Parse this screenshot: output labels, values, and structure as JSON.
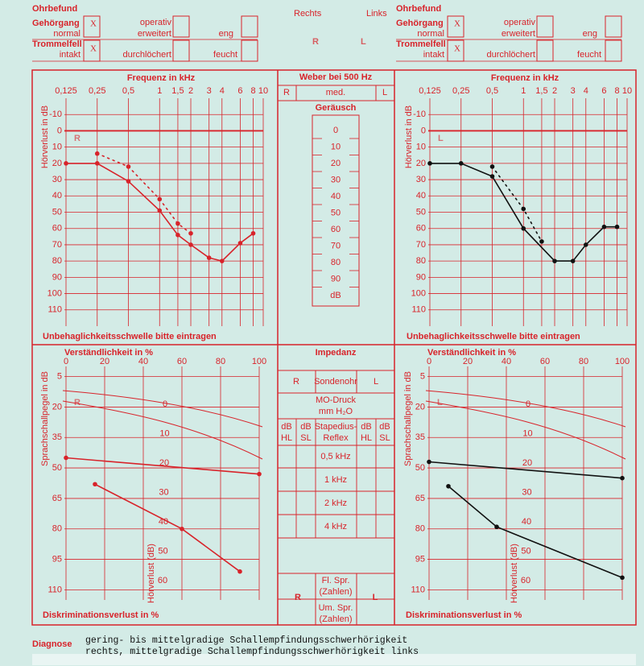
{
  "header": {
    "right": {
      "title": "Ohrbefund",
      "gehoergang": "Gehörgang",
      "normal": "normal",
      "operativ": "operativ",
      "erweitert": "erweitert",
      "eng": "eng",
      "trommelfell": "Trommelfell",
      "intakt": "intakt",
      "durchloechert": "durchlöchert",
      "feucht": "feucht",
      "checks": [
        "X",
        "X"
      ]
    },
    "left": {
      "title": "Ohrbefund",
      "gehoergang": "Gehörgang",
      "normal": "normal",
      "operativ": "operativ",
      "erweitert": "erweitert",
      "eng": "eng",
      "trommelfell": "Trommelfell",
      "intakt": "intakt",
      "durchloechert": "durchlöchert",
      "feucht": "feucht",
      "checks": [
        "X",
        "X"
      ]
    },
    "rechts": "Rechts",
    "links": "Links",
    "big_r": "R",
    "big_l": "L"
  },
  "audiograms": [
    {
      "x_label": "Frequenz in kHz",
      "y_label": "Hörverlust in dB",
      "footer": "Unbehaglichkeitsschwelle bitte eintragen",
      "watermark": "R",
      "log_x": true,
      "xlim": [
        0.125,
        10
      ],
      "xticks": [
        {
          "value": 0.125,
          "label": "0,125"
        },
        {
          "value": 0.25,
          "label": "0,25"
        },
        {
          "value": 0.5,
          "label": "0,5"
        },
        1,
        {
          "value": 1.5,
          "label": "1,5"
        },
        2,
        3,
        4,
        6,
        8,
        10
      ],
      "ylim": [
        -20,
        120
      ],
      "yticks": [
        -10,
        0,
        10,
        20,
        30,
        40,
        50,
        60,
        70,
        80,
        90,
        100,
        110
      ],
      "grid": true,
      "color": "#d8232a",
      "series": [
        {
          "x": [
            0.125,
            0.25,
            0.5,
            1,
            1.5,
            2,
            3,
            4,
            6,
            8
          ],
          "values": [
            20,
            20,
            31,
            49,
            64,
            70,
            78,
            80,
            69,
            63
          ],
          "dashed": false
        },
        {
          "x": [
            0.25,
            0.5,
            1,
            1.5,
            2
          ],
          "values": [
            14,
            22,
            42,
            57,
            63
          ],
          "dashed": true
        }
      ]
    },
    {
      "x_label": "Frequenz in kHz",
      "y_label": "Hörverlust in dB",
      "footer": "Unbehaglichkeitsschwelle bitte eintragen",
      "watermark": "L",
      "log_x": true,
      "xlim": [
        0.125,
        10
      ],
      "xticks": [
        {
          "value": 0.125,
          "label": "0,125"
        },
        {
          "value": 0.25,
          "label": "0,25"
        },
        {
          "value": 0.5,
          "label": "0,5"
        },
        1,
        {
          "value": 1.5,
          "label": "1,5"
        },
        2,
        3,
        4,
        6,
        8,
        10
      ],
      "ylim": [
        -20,
        120
      ],
      "yticks": [
        -10,
        0,
        10,
        20,
        30,
        40,
        50,
        60,
        70,
        80,
        90,
        100,
        110
      ],
      "grid": true,
      "color": "#111111",
      "series": [
        {
          "x": [
            0.125,
            0.25,
            0.5,
            1,
            2,
            3,
            4,
            6,
            8
          ],
          "values": [
            20,
            20,
            28,
            60,
            80,
            80,
            70,
            59,
            59
          ],
          "dashed": false
        },
        {
          "x": [
            0.5,
            1,
            1.5
          ],
          "values": [
            22,
            48,
            68
          ],
          "dashed": true
        }
      ]
    }
  ],
  "weber": {
    "title": "Weber bei 500 Hz",
    "cols": [
      "R",
      "med.",
      "L"
    ],
    "noise": "Geräusch",
    "scale": [
      0,
      10,
      20,
      30,
      40,
      50,
      60,
      70,
      80,
      90
    ],
    "unit": "dB"
  },
  "speech": [
    {
      "x_label": "Verständlichkeit in %",
      "y_label": "Sprachschallpegel in dB",
      "footer": "Diskriminationsverlust in %",
      "inner_label": "Hörverlust (dB)",
      "inner_ticks": [
        0,
        10,
        20,
        30,
        40,
        50,
        60
      ],
      "watermark": "R",
      "xlim": [
        0,
        100
      ],
      "xticks": [
        0,
        20,
        40,
        60,
        80,
        100
      ],
      "ylim": [
        0,
        115
      ],
      "yticks": [
        5,
        20,
        35,
        50,
        65,
        80,
        95,
        110
      ],
      "grid": true,
      "color": "#d8232a",
      "series": [
        {
          "x": [
            0,
            100
          ],
          "values": [
            45,
            53
          ]
        },
        {
          "x": [
            15,
            60,
            90
          ],
          "values": [
            58,
            80,
            101
          ]
        }
      ]
    },
    {
      "x_label": "Verständlichkeit in %",
      "y_label": "Sprachschallpegel in dB",
      "footer": "Diskriminationsverlust in %",
      "inner_label": "Hörverlust (dB)",
      "inner_ticks": [
        0,
        10,
        20,
        30,
        40,
        50,
        60
      ],
      "watermark": "L",
      "xlim": [
        0,
        100
      ],
      "xticks": [
        0,
        20,
        40,
        60,
        80,
        100
      ],
      "ylim": [
        0,
        115
      ],
      "yticks": [
        5,
        20,
        35,
        50,
        65,
        80,
        95,
        110
      ],
      "grid": true,
      "color": "#111111",
      "series": [
        {
          "x": [
            0,
            100
          ],
          "values": [
            47,
            55
          ]
        },
        {
          "x": [
            10,
            35,
            100
          ],
          "values": [
            59,
            79,
            104
          ]
        }
      ]
    }
  ],
  "impedance": {
    "title": "Impedanz",
    "r": "R",
    "probe": "Sondenohr",
    "l": "L",
    "mo": "MO-Druck",
    "mo_unit": "mm H₂O",
    "reflex_cols": [
      "dB",
      "HL",
      "dB",
      "SL"
    ],
    "reflex": [
      "Stapedius-",
      "Reflex"
    ],
    "freqs": [
      "0,5 kHz",
      "1 kHz",
      "2 kHz",
      "4 kHz"
    ],
    "fl": [
      "Fl. Spr.",
      "(Zahlen)"
    ],
    "um": [
      "Um. Spr.",
      "(Zahlen)"
    ],
    "big": [
      "R",
      "L"
    ]
  },
  "diagnosis": {
    "label": "Diagnose",
    "lines": [
      "gering- bis mittelgradige Schallempfindungsschwerhörigkeit",
      "rechts, mittelgradige Schallempfindungsschwerhörigkeit links"
    ]
  }
}
